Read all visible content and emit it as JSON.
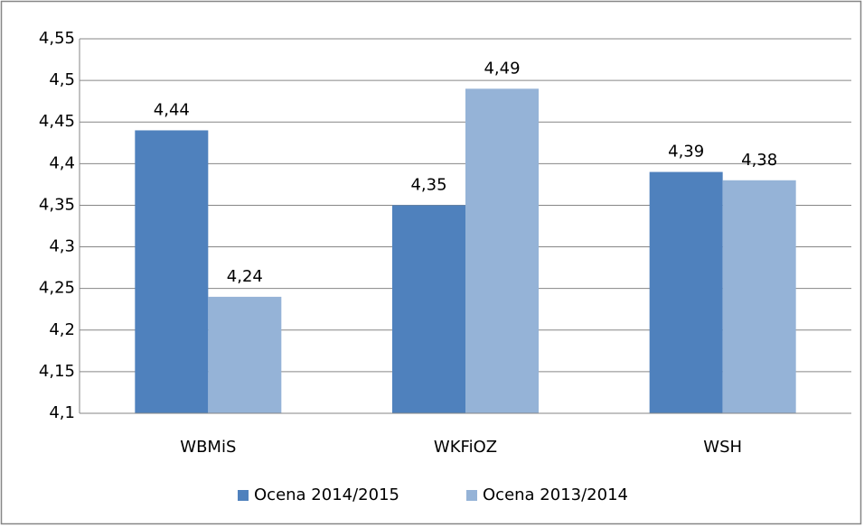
{
  "chart_data": {
    "type": "bar",
    "categories": [
      "WBMiS",
      "WKFiOZ",
      "WSH"
    ],
    "series": [
      {
        "name": "Ocena 2014/2015",
        "color": "#4f81bd",
        "values": [
          4.44,
          4.35,
          4.39
        ],
        "value_labels": [
          "4,44",
          "4,35",
          "4,39"
        ]
      },
      {
        "name": "Ocena 2013/2014",
        "color": "#95b3d7",
        "values": [
          4.24,
          4.49,
          4.38
        ],
        "value_labels": [
          "4,24",
          "4,49",
          "4,38"
        ]
      }
    ],
    "ylim": [
      4.1,
      4.55
    ],
    "yticks": [
      {
        "value": 4.1,
        "label": "4,1"
      },
      {
        "value": 4.15,
        "label": "4,15"
      },
      {
        "value": 4.2,
        "label": "4,2"
      },
      {
        "value": 4.25,
        "label": "4,25"
      },
      {
        "value": 4.3,
        "label": "4,3"
      },
      {
        "value": 4.35,
        "label": "4,35"
      },
      {
        "value": 4.4,
        "label": "4,4"
      },
      {
        "value": 4.45,
        "label": "4,45"
      },
      {
        "value": 4.5,
        "label": "4,5"
      },
      {
        "value": 4.55,
        "label": "4,55"
      }
    ],
    "grid": true,
    "legend": "bottom"
  }
}
